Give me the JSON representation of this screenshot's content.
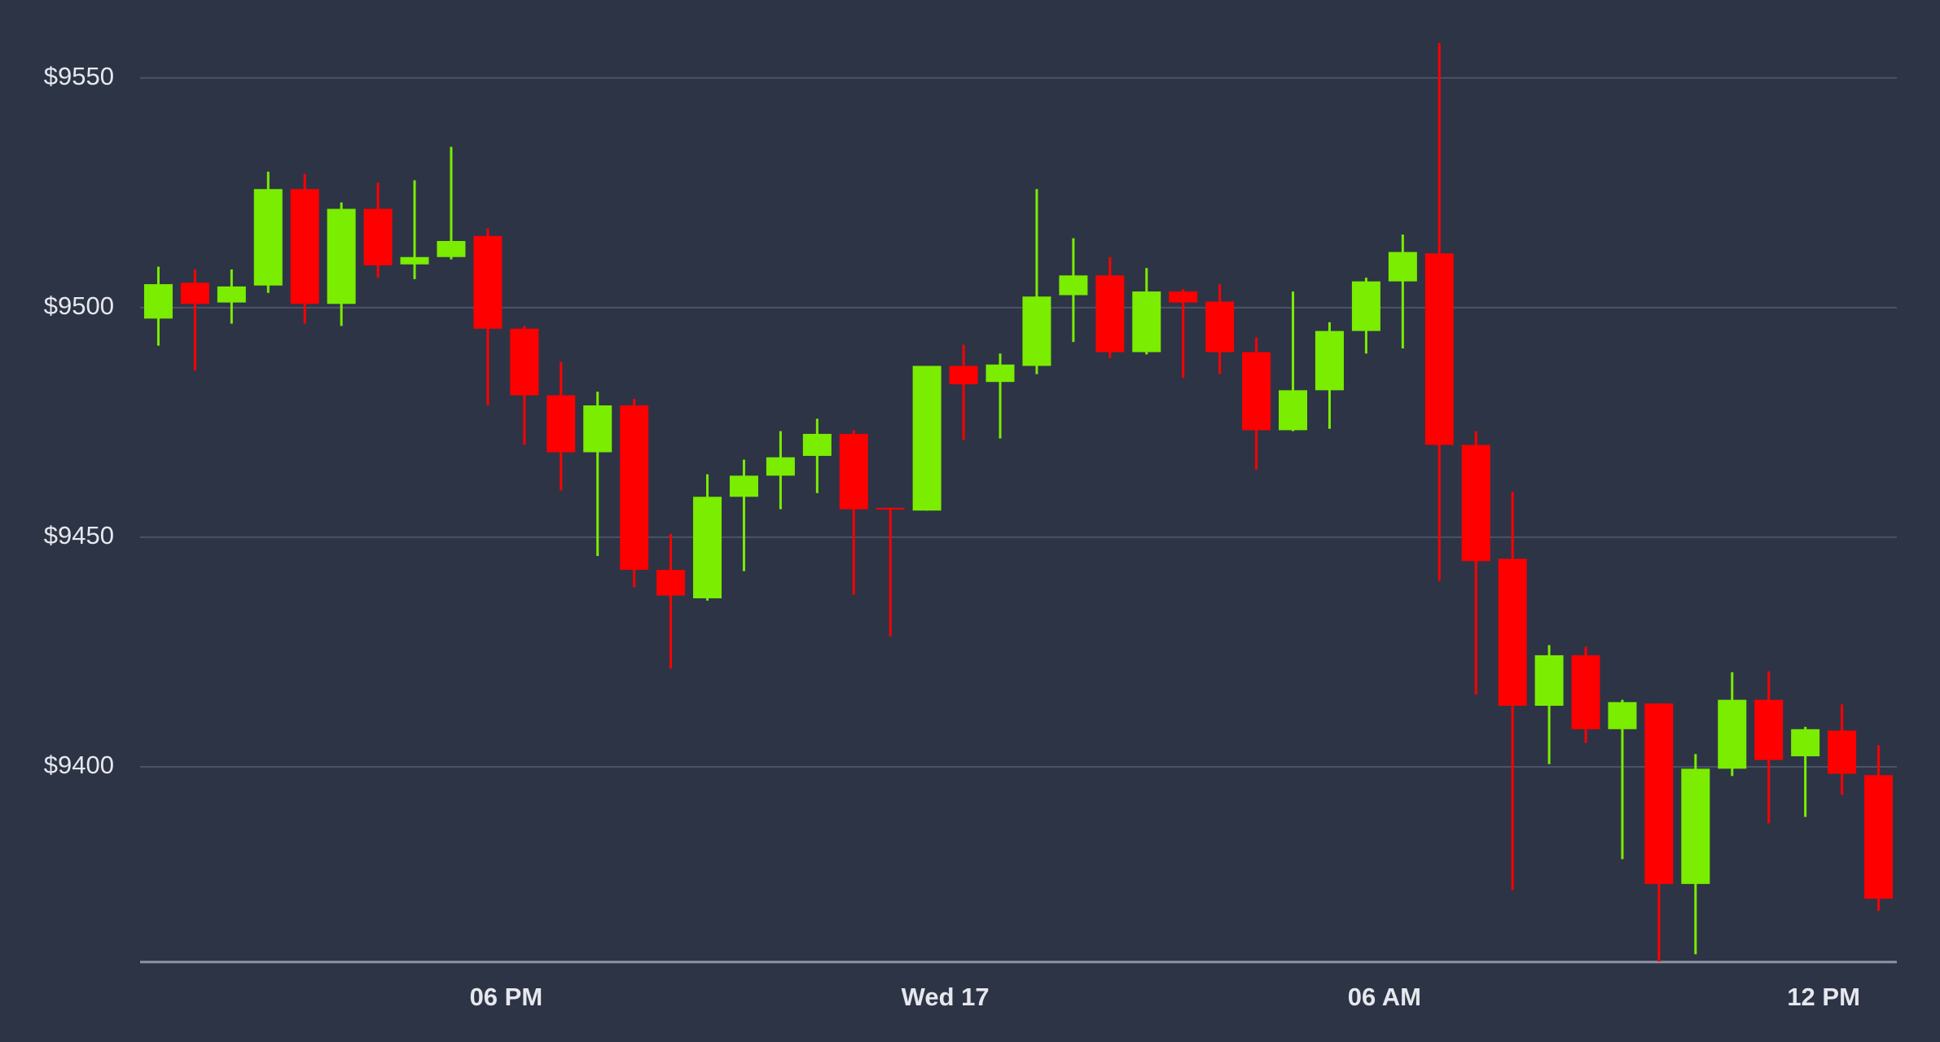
{
  "chart_data": {
    "type": "candlestick",
    "categories": [
      null,
      null,
      null,
      null,
      null,
      null,
      null,
      null,
      null,
      null,
      null,
      null,
      null,
      null,
      null,
      null,
      null,
      null,
      null,
      null,
      null,
      null,
      null,
      null,
      null,
      null,
      null,
      null,
      null,
      null,
      null,
      null,
      null,
      null,
      null,
      null,
      null,
      null,
      null,
      null,
      null,
      null,
      null,
      null,
      null,
      null,
      null,
      null
    ],
    "open": [
      9497.6,
      9505.4,
      9501.1,
      9504.8,
      9525.8,
      9500.8,
      9521.5,
      9509.4,
      9511.0,
      9515.6,
      9495.4,
      9480.9,
      9468.5,
      9478.7,
      9442.9,
      9436.7,
      9458.8,
      9463.4,
      9467.7,
      9472.5,
      9456.4,
      9455.8,
      9487.3,
      9483.8,
      9487.3,
      9502.7,
      9507.0,
      9490.3,
      9503.5,
      9501.3,
      9490.3,
      9473.3,
      9482.0,
      9494.9,
      9505.7,
      9511.8,
      9470.1,
      9445.3,
      9413.3,
      9424.3,
      9408.2,
      9413.8,
      9374.5,
      9399.6,
      9414.6,
      9402.3,
      9407.9,
      9398.2
    ],
    "high": [
      9508.9,
      9508.3,
      9508.3,
      9529.6,
      9529.1,
      9522.9,
      9527.2,
      9527.7,
      9535.0,
      9517.2,
      9496.0,
      9488.2,
      9481.7,
      9480.1,
      9450.7,
      9463.7,
      9466.9,
      9473.1,
      9475.8,
      9473.3,
      9456.4,
      9487.3,
      9491.9,
      9490.0,
      9525.8,
      9515.1,
      9511.0,
      9508.6,
      9504.0,
      9505.1,
      9493.5,
      9503.5,
      9496.8,
      9506.5,
      9515.9,
      9557.6,
      9473.1,
      9459.9,
      9426.5,
      9426.2,
      9414.6,
      9413.8,
      9402.8,
      9420.6,
      9420.8,
      9408.7,
      9413.6,
      9404.7
    ],
    "low": [
      9491.7,
      9486.3,
      9496.5,
      9503.2,
      9496.5,
      9496.0,
      9506.5,
      9506.2,
      9510.5,
      9478.7,
      9470.1,
      9460.2,
      9445.9,
      9439.1,
      9421.4,
      9436.2,
      9442.6,
      9456.1,
      9459.6,
      9437.5,
      9428.4,
      9455.8,
      9471.2,
      9471.5,
      9485.5,
      9492.5,
      9489.0,
      9489.8,
      9484.7,
      9485.5,
      9464.7,
      9473.1,
      9473.6,
      9490.0,
      9491.1,
      9440.5,
      9415.7,
      9373.2,
      9400.6,
      9405.2,
      9379.9,
      9357.6,
      9359.2,
      9398.0,
      9387.7,
      9389.1,
      9393.9,
      9368.6
    ],
    "close": [
      9505.1,
      9500.8,
      9504.6,
      9525.8,
      9500.8,
      9521.5,
      9509.2,
      9511.0,
      9514.5,
      9495.4,
      9480.9,
      9468.5,
      9478.7,
      9442.9,
      9437.3,
      9458.8,
      9463.4,
      9467.4,
      9472.5,
      9456.1,
      9456.1,
      9487.3,
      9483.3,
      9487.6,
      9502.4,
      9507.0,
      9490.3,
      9503.5,
      9501.1,
      9490.3,
      9473.3,
      9482.0,
      9494.9,
      9505.7,
      9512.1,
      9470.1,
      9444.8,
      9413.3,
      9424.3,
      9408.2,
      9414.1,
      9374.5,
      9399.6,
      9414.6,
      9401.5,
      9408.2,
      9398.5,
      9371.3
    ],
    "up_color": "#7aed00",
    "down_color": "#ff0000",
    "ylim": [
      9357.5,
      9560
    ],
    "yticks": [
      {
        "value": 9400,
        "label": "$9400"
      },
      {
        "value": 9450,
        "label": "$9450"
      },
      {
        "value": 9500,
        "label": "$9500"
      },
      {
        "value": 9550,
        "label": "$9550"
      }
    ],
    "xticks": [
      {
        "value": 9.5,
        "label": "06 PM"
      },
      {
        "value": 21.5,
        "label": "Wed 17"
      },
      {
        "value": 33.5,
        "label": "06 AM"
      },
      {
        "value": 45.5,
        "label": "12 PM"
      }
    ],
    "grid": true
  }
}
